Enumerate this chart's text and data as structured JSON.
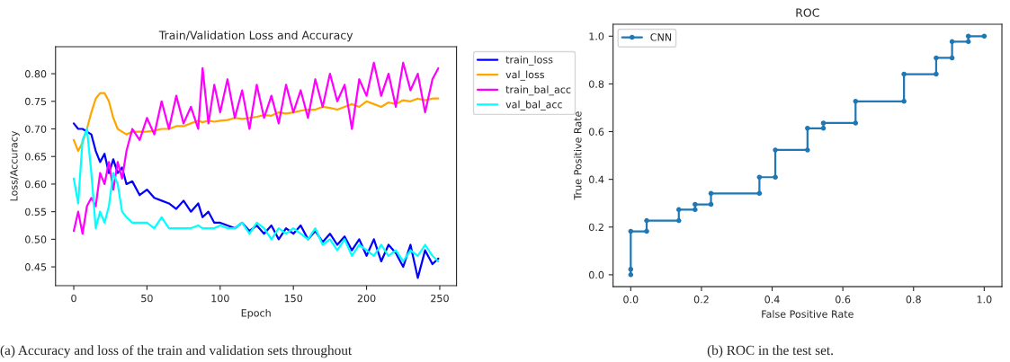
{
  "chart_data": [
    {
      "type": "line",
      "title": "Train/Validation Loss and Accuracy",
      "xlabel": "Epoch",
      "ylabel": "Loss/Accuracy",
      "x": [
        0,
        3,
        6,
        9,
        12,
        15,
        18,
        21,
        24,
        27,
        30,
        33,
        36,
        40,
        45,
        50,
        55,
        60,
        65,
        70,
        75,
        80,
        85,
        88,
        92,
        96,
        100,
        105,
        110,
        115,
        120,
        125,
        130,
        135,
        140,
        145,
        150,
        155,
        160,
        165,
        170,
        175,
        180,
        185,
        190,
        195,
        200,
        205,
        210,
        215,
        220,
        225,
        230,
        235,
        240,
        245,
        249
      ],
      "series": [
        {
          "name": "train_loss",
          "color": "#0000ff",
          "values": [
            0.71,
            0.7,
            0.7,
            0.695,
            0.69,
            0.66,
            0.64,
            0.655,
            0.62,
            0.645,
            0.62,
            0.63,
            0.6,
            0.605,
            0.58,
            0.59,
            0.575,
            0.57,
            0.565,
            0.555,
            0.57,
            0.55,
            0.565,
            0.54,
            0.55,
            0.53,
            0.53,
            0.525,
            0.52,
            0.53,
            0.515,
            0.525,
            0.51,
            0.525,
            0.5,
            0.52,
            0.51,
            0.525,
            0.5,
            0.515,
            0.495,
            0.51,
            0.49,
            0.505,
            0.48,
            0.5,
            0.47,
            0.5,
            0.46,
            0.49,
            0.475,
            0.45,
            0.49,
            0.43,
            0.48,
            0.455,
            0.465
          ]
        },
        {
          "name": "val_loss",
          "color": "#ffa500",
          "values": [
            0.68,
            0.66,
            0.675,
            0.7,
            0.73,
            0.755,
            0.765,
            0.765,
            0.75,
            0.72,
            0.7,
            0.695,
            0.69,
            0.695,
            0.695,
            0.695,
            0.697,
            0.7,
            0.7,
            0.705,
            0.705,
            0.71,
            0.715,
            0.712,
            0.715,
            0.713,
            0.715,
            0.716,
            0.72,
            0.718,
            0.72,
            0.722,
            0.725,
            0.724,
            0.73,
            0.728,
            0.73,
            0.733,
            0.735,
            0.735,
            0.74,
            0.738,
            0.735,
            0.74,
            0.745,
            0.74,
            0.75,
            0.745,
            0.74,
            0.748,
            0.745,
            0.752,
            0.75,
            0.755,
            0.752,
            0.755,
            0.755
          ]
        },
        {
          "name": "train_bal_acc",
          "color": "#ff00ff",
          "values": [
            0.515,
            0.55,
            0.51,
            0.56,
            0.575,
            0.56,
            0.62,
            0.6,
            0.64,
            0.59,
            0.64,
            0.61,
            0.66,
            0.7,
            0.68,
            0.72,
            0.69,
            0.75,
            0.7,
            0.76,
            0.71,
            0.74,
            0.7,
            0.81,
            0.71,
            0.78,
            0.73,
            0.79,
            0.72,
            0.77,
            0.7,
            0.78,
            0.72,
            0.76,
            0.71,
            0.78,
            0.73,
            0.77,
            0.72,
            0.79,
            0.74,
            0.8,
            0.75,
            0.78,
            0.7,
            0.79,
            0.76,
            0.82,
            0.76,
            0.8,
            0.74,
            0.82,
            0.77,
            0.8,
            0.73,
            0.79,
            0.81
          ]
        },
        {
          "name": "val_bal_acc",
          "color": "#00ffff",
          "values": [
            0.61,
            0.565,
            0.68,
            0.7,
            0.62,
            0.52,
            0.55,
            0.53,
            0.56,
            0.62,
            0.6,
            0.55,
            0.54,
            0.53,
            0.53,
            0.53,
            0.52,
            0.54,
            0.52,
            0.52,
            0.52,
            0.52,
            0.525,
            0.52,
            0.52,
            0.52,
            0.525,
            0.52,
            0.52,
            0.53,
            0.51,
            0.53,
            0.52,
            0.5,
            0.52,
            0.51,
            0.52,
            0.51,
            0.5,
            0.52,
            0.49,
            0.5,
            0.48,
            0.5,
            0.47,
            0.49,
            0.48,
            0.47,
            0.49,
            0.47,
            0.48,
            0.46,
            0.48,
            0.47,
            0.49,
            0.47,
            0.46
          ]
        }
      ],
      "xlim": [
        -12.45,
        261.45
      ],
      "xticks": [
        0,
        50,
        100,
        150,
        200,
        250
      ],
      "ylim": [
        0.416,
        0.849
      ],
      "yticks": [
        {
          "value": 0.45,
          "label": "0.45"
        },
        {
          "value": 0.5,
          "label": "0.50"
        },
        {
          "value": 0.55,
          "label": "0.55"
        },
        {
          "value": 0.6,
          "label": "0.60"
        },
        {
          "value": 0.65,
          "label": "0.65"
        },
        {
          "value": 0.7,
          "label": "0.70"
        },
        {
          "value": 0.75,
          "label": "0.75"
        },
        {
          "value": 0.8,
          "label": "0.80"
        }
      ],
      "grid": false,
      "legend": "right",
      "marker": "none",
      "line_style": "solid",
      "annotations": [
        "(a) Accuracy and loss of the train and validation sets throughout"
      ]
    },
    {
      "type": "line",
      "title": "ROC",
      "xlabel": "False Positive Rate",
      "ylabel": "True Positive Rate",
      "x": [
        0,
        0,
        0,
        0.045,
        0.045,
        0.136,
        0.136,
        0.182,
        0.182,
        0.227,
        0.227,
        0.364,
        0.364,
        0.409,
        0.409,
        0.5,
        0.5,
        0.545,
        0.545,
        0.636,
        0.636,
        0.773,
        0.773,
        0.864,
        0.864,
        0.909,
        0.909,
        0.955,
        0.955,
        1.0
      ],
      "series": [
        {
          "name": "CNN",
          "color": "#1f77b4",
          "values": [
            0,
            0.023,
            0.182,
            0.182,
            0.227,
            0.227,
            0.273,
            0.273,
            0.295,
            0.295,
            0.341,
            0.341,
            0.409,
            0.409,
            0.523,
            0.523,
            0.614,
            0.614,
            0.636,
            0.636,
            0.727,
            0.727,
            0.841,
            0.841,
            0.909,
            0.909,
            0.977,
            0.977,
            1.0,
            1.0
          ]
        }
      ],
      "xlim": [
        -0.05,
        1.05
      ],
      "xticks": [
        {
          "value": 0,
          "label": "0.0"
        },
        {
          "value": 0.2,
          "label": "0.2"
        },
        {
          "value": 0.4,
          "label": "0.4"
        },
        {
          "value": 0.6,
          "label": "0.6"
        },
        {
          "value": 0.8,
          "label": "0.8"
        },
        {
          "value": 1.0,
          "label": "1.0"
        }
      ],
      "ylim": [
        -0.05,
        1.05
      ],
      "yticks": [
        {
          "value": 0,
          "label": "0.0"
        },
        {
          "value": 0.2,
          "label": "0.2"
        },
        {
          "value": 0.4,
          "label": "0.4"
        },
        {
          "value": 0.6,
          "label": "0.6"
        },
        {
          "value": 0.8,
          "label": "0.8"
        },
        {
          "value": 1.0,
          "label": "1.0"
        }
      ],
      "grid": false,
      "legend": "top left",
      "marker": "circle",
      "line_style": "solid",
      "annotations": [
        "(b) ROC in the test set."
      ]
    }
  ]
}
